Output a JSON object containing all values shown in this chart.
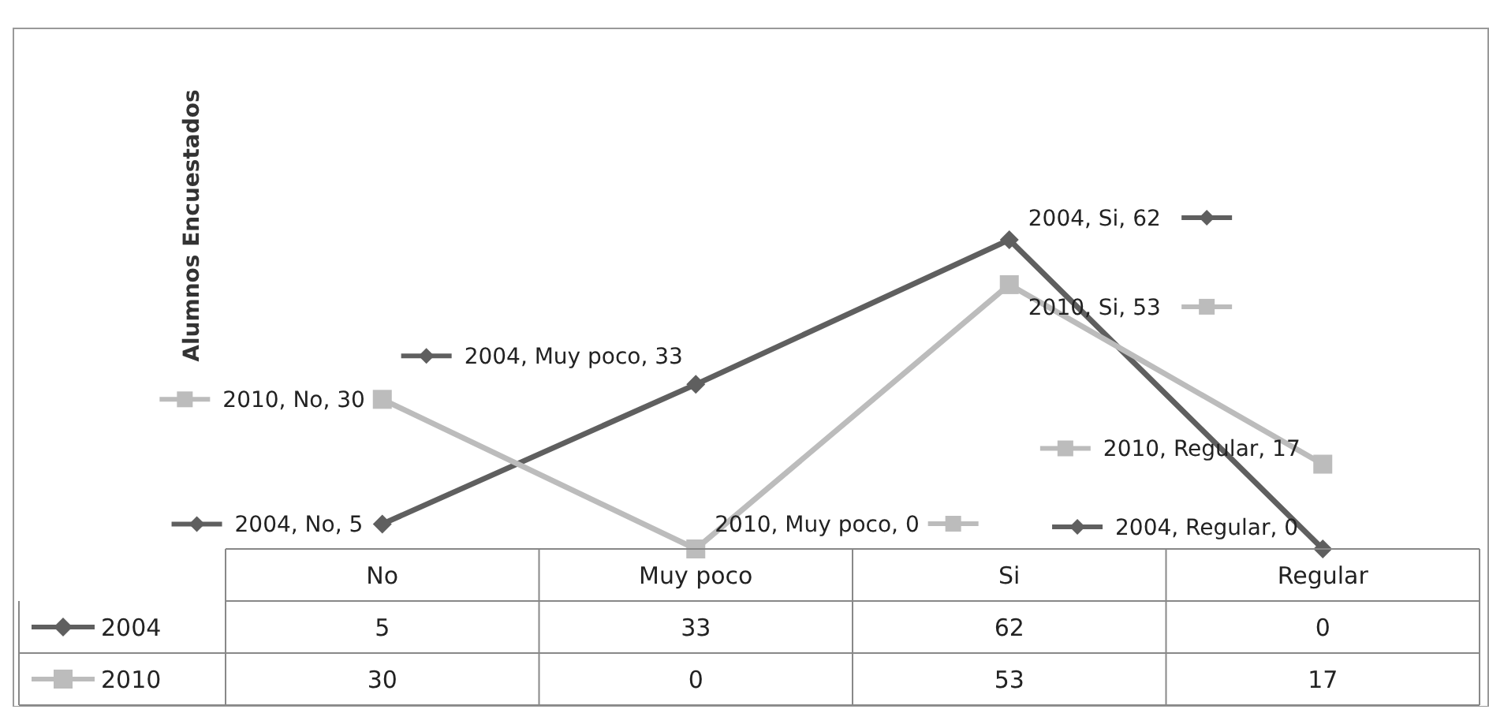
{
  "chart_data": {
    "type": "line",
    "ylabel": "Alumnos Encuestados",
    "categories": [
      "No",
      "Muy poco",
      "Si",
      "Regular"
    ],
    "data_labels": true,
    "legend": "bottom",
    "series": [
      {
        "name": "2004",
        "color": "#5f5f5f",
        "marker": "diamond",
        "values": [
          5,
          33,
          62,
          0
        ]
      },
      {
        "name": "2010",
        "color": "#bcbcbc",
        "marker": "square",
        "values": [
          30,
          0,
          53,
          17
        ]
      }
    ],
    "annotations": [
      {
        "text": "2004, No, 5",
        "x": "No",
        "y": 5
      },
      {
        "text": "2004, Muy poco, 33",
        "x": "Muy poco",
        "y": 33
      },
      {
        "text": "2004, Si, 62",
        "x": "Si",
        "y": 62
      },
      {
        "text": "2004, Regular, 0",
        "x": "Regular",
        "y": 0
      },
      {
        "text": "2010, No, 30",
        "x": "No",
        "y": 30
      },
      {
        "text": "2010, Muy poco, 0",
        "x": "Muy poco",
        "y": 0
      },
      {
        "text": "2010, Si, 53",
        "x": "Si",
        "y": 53
      },
      {
        "text": "2010, Regular, 17",
        "x": "Regular",
        "y": 17
      }
    ]
  }
}
